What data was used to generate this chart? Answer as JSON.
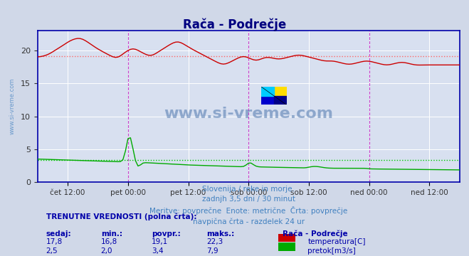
{
  "title": "Rača - Podrečje",
  "title_color": "#000080",
  "bg_color": "#d0d8e8",
  "plot_bg_color": "#d8e0f0",
  "grid_color": "#ffffff",
  "x_tick_labels": [
    "čet 12:00",
    "pet 00:00",
    "pet 12:00",
    "sob 00:00",
    "sob 12:00",
    "ned 00:00",
    "ned 12:00"
  ],
  "x_tick_positions": [
    0.5,
    1.5,
    2.5,
    3.5,
    4.5,
    5.5,
    6.5
  ],
  "vline_positions": [
    1.5,
    3.5,
    5.5
  ],
  "hline_temp": 19.1,
  "hline_flow": 3.4,
  "ylim": [
    0,
    23
  ],
  "yticks": [
    0,
    5,
    10,
    15,
    20
  ],
  "watermark": "www.si-vreme.com",
  "watermark_color": "#3060a0",
  "watermark_alpha": 0.5,
  "subtitle_lines": [
    "Slovenija / reke in morje.",
    "zadnjh 3,5 dni / 30 minut",
    "Meritve: povprečne  Enote: metrične  Črta: povprečje",
    "navpična črta - razdelek 24 ur"
  ],
  "subtitle_color": "#4080c0",
  "left_label": "www.si-vreme.com",
  "left_label_color": "#4080c0",
  "footer_title": "TRENUTNE VREDNOSTI (polna črta):",
  "footer_cols": [
    "sedaj:",
    "min.:",
    "povpr.:",
    "maks.:"
  ],
  "footer_temp_vals": [
    "17,8",
    "16,8",
    "19,1",
    "22,3"
  ],
  "footer_flow_vals": [
    "2,5",
    "2,0",
    "3,4",
    "7,9"
  ],
  "footer_legend": [
    "Rača - Podrečje",
    "temperatura[C]",
    "pretok[m3/s]"
  ],
  "temp_color": "#cc0000",
  "flow_color": "#00aa00",
  "temp_avg_color": "#ff6666",
  "flow_avg_color": "#00cc00",
  "xlim": [
    0,
    7
  ]
}
